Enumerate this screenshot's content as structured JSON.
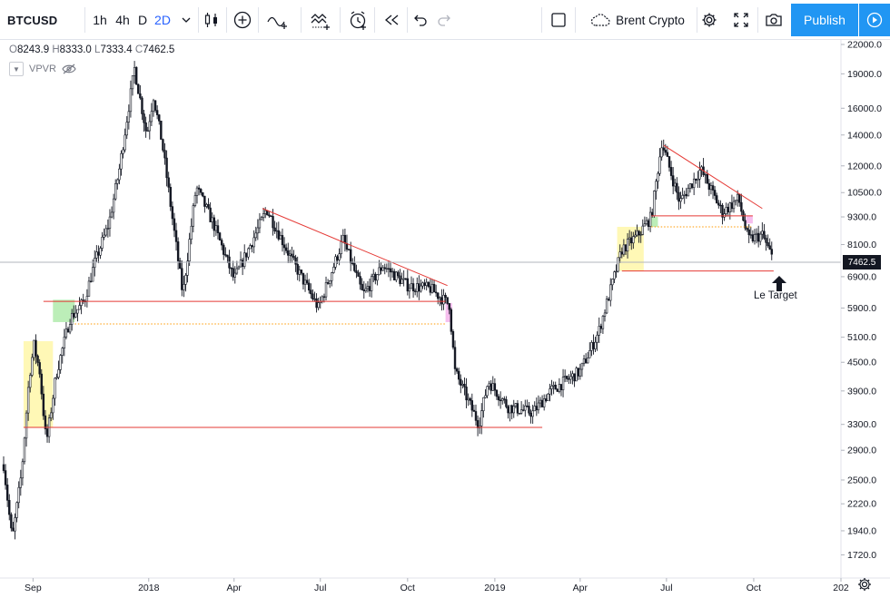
{
  "toolbar": {
    "symbol": "BTCUSD",
    "intervals": [
      "1h",
      "4h",
      "D",
      "2D"
    ],
    "active_interval": "2D",
    "chart_type_icon": "candles-icon",
    "compare": "Brent Crypto",
    "publish_label": "Publish"
  },
  "legend": {
    "o_key": "O",
    "o_val": "8243.9",
    "h_key": "H",
    "h_val": "8333.0",
    "l_key": "L",
    "l_val": "7333.4",
    "c_key": "C",
    "c_val": "7462.5",
    "indicator": "VPVR"
  },
  "price_axis": {
    "labels": [
      "22000.0",
      "19000.0",
      "16000.0",
      "14000.0",
      "12000.0",
      "10500.0",
      "9300.0",
      "8100.0",
      "6900.0",
      "5900.0",
      "5100.0",
      "4500.0",
      "3900.0",
      "3300.0",
      "2900.0",
      "2500.0",
      "2220.0",
      "1940.0",
      "1720.0"
    ],
    "current": "7462.5"
  },
  "time_axis": {
    "labels": [
      "Sep",
      "2018",
      "Apr",
      "Jul",
      "Oct",
      "2019",
      "Apr",
      "Jul",
      "Oct",
      "202"
    ]
  },
  "annotation": {
    "target_text": "Le Target"
  },
  "colors": {
    "accent": "#2196f3",
    "trendline": "#e53935",
    "zone_yellow": "#fff59d",
    "zone_green": "#a5e8a0",
    "zone_pink": "#f3a8e8",
    "dotted": "#ff9800"
  },
  "chart_data": {
    "type": "candlestick",
    "symbol": "BTCUSD",
    "interval": "2D",
    "scale": "log",
    "ylim": [
      1600,
      23000
    ],
    "path": [
      [
        "2017-08-01",
        2700
      ],
      [
        "2017-08-10",
        1850
      ],
      [
        "2017-08-20",
        2600
      ],
      [
        "2017-08-28",
        4200
      ],
      [
        "2017-09-02",
        4900
      ],
      [
        "2017-09-08",
        4300
      ],
      [
        "2017-09-15",
        3000
      ],
      [
        "2017-09-25",
        4200
      ],
      [
        "2017-10-10",
        5600
      ],
      [
        "2017-10-25",
        6100
      ],
      [
        "2017-11-05",
        7400
      ],
      [
        "2017-11-20",
        9000
      ],
      [
        "2017-12-01",
        11800
      ],
      [
        "2017-12-17",
        19500
      ],
      [
        "2017-12-30",
        14000
      ],
      [
        "2018-01-06",
        17000
      ],
      [
        "2018-01-15",
        13500
      ],
      [
        "2018-02-06",
        6300
      ],
      [
        "2018-02-20",
        10800
      ],
      [
        "2018-03-10",
        9000
      ],
      [
        "2018-04-01",
        6800
      ],
      [
        "2018-05-01",
        9200
      ],
      [
        "2018-05-05",
        9700
      ],
      [
        "2018-06-01",
        7500
      ],
      [
        "2018-06-29",
        5900
      ],
      [
        "2018-07-25",
        8300
      ],
      [
        "2018-08-15",
        6300
      ],
      [
        "2018-09-05",
        7300
      ],
      [
        "2018-10-01",
        6600
      ],
      [
        "2018-10-25",
        6500
      ],
      [
        "2018-11-14",
        6000
      ],
      [
        "2018-11-20",
        4300
      ],
      [
        "2018-12-15",
        3300
      ],
      [
        "2018-12-25",
        4100
      ],
      [
        "2019-01-15",
        3600
      ],
      [
        "2019-02-10",
        3500
      ],
      [
        "2019-03-01",
        3900
      ],
      [
        "2019-04-01",
        4300
      ],
      [
        "2019-04-20",
        5200
      ],
      [
        "2019-05-15",
        7900
      ],
      [
        "2019-06-01",
        8500
      ],
      [
        "2019-06-15",
        9300
      ],
      [
        "2019-06-26",
        13500
      ],
      [
        "2019-07-15",
        10000
      ],
      [
        "2019-08-06",
        11800
      ],
      [
        "2019-08-29",
        9500
      ],
      [
        "2019-09-15",
        10200
      ],
      [
        "2019-09-25",
        8300
      ],
      [
        "2019-10-10",
        8500
      ],
      [
        "2019-10-22",
        7462.5
      ]
    ],
    "zones": [
      {
        "color": "yellow",
        "from": "2017-08-22",
        "to": "2017-09-22",
        "low": 3250,
        "high": 5000
      },
      {
        "color": "green",
        "from": "2017-09-22",
        "to": "2017-10-15",
        "low": 5500,
        "high": 6150
      },
      {
        "color": "pink",
        "from": "2018-11-10",
        "to": "2018-11-17",
        "low": 5500,
        "high": 6050
      },
      {
        "color": "yellow",
        "from": "2019-05-10",
        "to": "2019-06-07",
        "low": 7100,
        "high": 8850
      },
      {
        "color": "green",
        "from": "2019-06-15",
        "to": "2019-06-22",
        "low": 8850,
        "high": 9300
      },
      {
        "color": "pink",
        "from": "2019-09-23",
        "to": "2019-09-30",
        "low": 9000,
        "high": 9350
      }
    ],
    "horizontal_lines": [
      {
        "from": "2017-09-12",
        "to": "2018-11-10",
        "price": 6100,
        "style": "solid"
      },
      {
        "from": "2017-10-15",
        "to": "2018-11-10",
        "price": 5450,
        "style": "dotted"
      },
      {
        "from": "2017-08-22",
        "to": "2019-02-20",
        "price": 3250,
        "style": "solid"
      },
      {
        "from": "2019-05-15",
        "to": "2019-10-22",
        "price": 7100,
        "style": "solid"
      },
      {
        "from": "2019-06-15",
        "to": "2019-09-30",
        "price": 9350,
        "style": "solid"
      },
      {
        "from": "2019-06-15",
        "to": "2019-09-30",
        "price": 8850,
        "style": "dotted"
      }
    ],
    "trend_lines": [
      {
        "from": [
          "2018-05-01",
          9700
        ],
        "to": [
          "2018-11-12",
          6600
        ]
      },
      {
        "from": [
          "2019-06-28",
          13300
        ],
        "to": [
          "2019-10-10",
          9700
        ]
      }
    ],
    "target_price": 7100
  }
}
